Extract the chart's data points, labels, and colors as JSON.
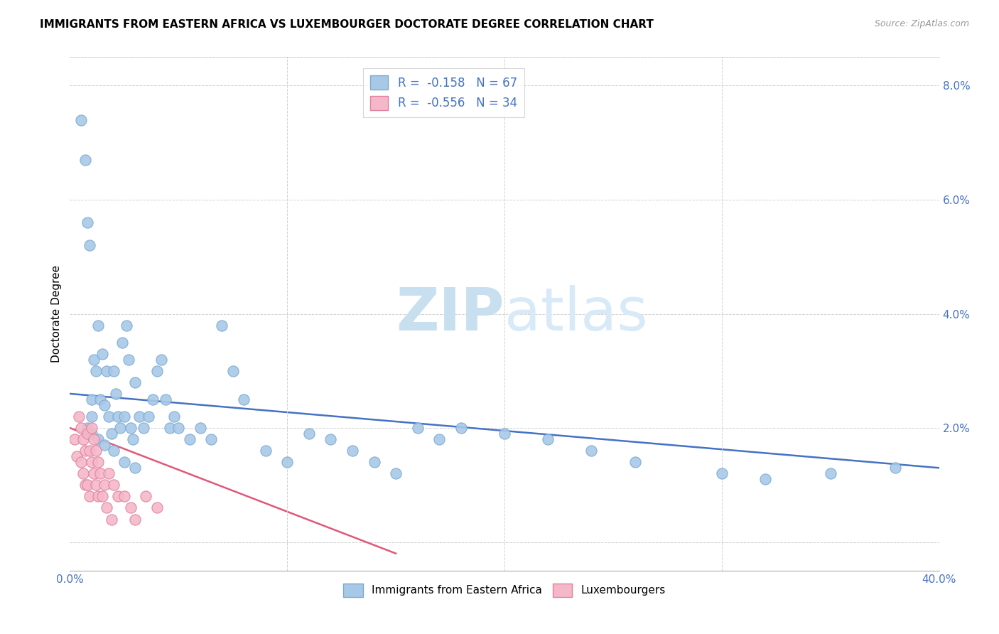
{
  "title": "IMMIGRANTS FROM EASTERN AFRICA VS LUXEMBOURGER DOCTORATE DEGREE CORRELATION CHART",
  "source": "Source: ZipAtlas.com",
  "ylabel": "Doctorate Degree",
  "watermark_zip": "ZIP",
  "watermark_atlas": "atlas",
  "xlim": [
    0.0,
    0.4
  ],
  "ylim": [
    -0.005,
    0.085
  ],
  "yticks": [
    0.0,
    0.02,
    0.04,
    0.06,
    0.08
  ],
  "ytick_labels": [
    "",
    "2.0%",
    "4.0%",
    "6.0%",
    "8.0%"
  ],
  "xticks": [
    0.0,
    0.1,
    0.2,
    0.3,
    0.4
  ],
  "xtick_labels": [
    "0.0%",
    "",
    "",
    "",
    "40.0%"
  ],
  "legend1_label": "R =  -0.158   N = 67",
  "legend2_label": "R =  -0.556   N = 34",
  "blue_scatter_color": "#a8c8e8",
  "blue_scatter_edge": "#7aaad0",
  "pink_scatter_color": "#f5b8c8",
  "pink_scatter_edge": "#e080a0",
  "blue_trend_color": "#4472c4",
  "pink_trend_color": "#e05878",
  "scatter_blue_x": [
    0.005,
    0.007,
    0.008,
    0.009,
    0.01,
    0.01,
    0.011,
    0.012,
    0.013,
    0.014,
    0.015,
    0.016,
    0.017,
    0.018,
    0.019,
    0.02,
    0.021,
    0.022,
    0.023,
    0.024,
    0.025,
    0.026,
    0.027,
    0.028,
    0.029,
    0.03,
    0.032,
    0.034,
    0.036,
    0.038,
    0.04,
    0.042,
    0.044,
    0.046,
    0.048,
    0.05,
    0.055,
    0.06,
    0.065,
    0.07,
    0.075,
    0.08,
    0.09,
    0.1,
    0.11,
    0.12,
    0.13,
    0.14,
    0.15,
    0.16,
    0.17,
    0.18,
    0.2,
    0.22,
    0.24,
    0.26,
    0.3,
    0.32,
    0.35,
    0.38,
    0.008,
    0.01,
    0.013,
    0.016,
    0.02,
    0.025,
    0.03
  ],
  "scatter_blue_y": [
    0.074,
    0.067,
    0.056,
    0.052,
    0.025,
    0.022,
    0.032,
    0.03,
    0.038,
    0.025,
    0.033,
    0.024,
    0.03,
    0.022,
    0.019,
    0.03,
    0.026,
    0.022,
    0.02,
    0.035,
    0.022,
    0.038,
    0.032,
    0.02,
    0.018,
    0.028,
    0.022,
    0.02,
    0.022,
    0.025,
    0.03,
    0.032,
    0.025,
    0.02,
    0.022,
    0.02,
    0.018,
    0.02,
    0.018,
    0.038,
    0.03,
    0.025,
    0.016,
    0.014,
    0.019,
    0.018,
    0.016,
    0.014,
    0.012,
    0.02,
    0.018,
    0.02,
    0.019,
    0.018,
    0.016,
    0.014,
    0.012,
    0.011,
    0.012,
    0.013,
    0.02,
    0.019,
    0.018,
    0.017,
    0.016,
    0.014,
    0.013
  ],
  "scatter_pink_x": [
    0.002,
    0.003,
    0.004,
    0.005,
    0.005,
    0.006,
    0.006,
    0.007,
    0.007,
    0.008,
    0.008,
    0.009,
    0.009,
    0.01,
    0.01,
    0.011,
    0.011,
    0.012,
    0.012,
    0.013,
    0.013,
    0.014,
    0.015,
    0.016,
    0.017,
    0.018,
    0.019,
    0.02,
    0.022,
    0.025,
    0.028,
    0.03,
    0.035,
    0.04
  ],
  "scatter_pink_y": [
    0.018,
    0.015,
    0.022,
    0.014,
    0.02,
    0.012,
    0.018,
    0.01,
    0.016,
    0.01,
    0.019,
    0.008,
    0.016,
    0.02,
    0.014,
    0.012,
    0.018,
    0.01,
    0.016,
    0.008,
    0.014,
    0.012,
    0.008,
    0.01,
    0.006,
    0.012,
    0.004,
    0.01,
    0.008,
    0.008,
    0.006,
    0.004,
    0.008,
    0.006
  ],
  "trend_blue_x0": 0.0,
  "trend_blue_y0": 0.026,
  "trend_blue_x1": 0.4,
  "trend_blue_y1": 0.013,
  "trend_pink_x0": 0.0,
  "trend_pink_y0": 0.02,
  "trend_pink_x1": 0.15,
  "trend_pink_y1": -0.002,
  "bottom_legend1": "Immigrants from Eastern Africa",
  "bottom_legend2": "Luxembourgers"
}
